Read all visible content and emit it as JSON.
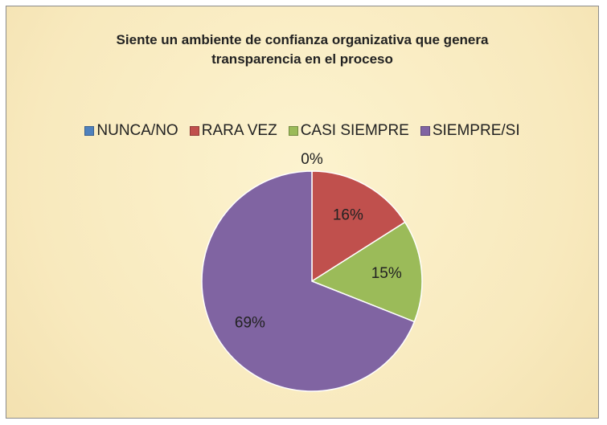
{
  "chart_data": {
    "type": "pie",
    "title": "Siente un ambiente de confianza organizativa que genera transparencia en el proceso",
    "categories": [
      "NUNCA/NO",
      "RARA VEZ",
      "CASI SIEMPRE",
      "SIEMPRE/SI"
    ],
    "values": [
      0,
      16,
      15,
      69
    ],
    "value_labels": [
      "0%",
      "16%",
      "15%",
      "69%"
    ],
    "colors": [
      "#4f81bd",
      "#c0504d",
      "#9bbb59",
      "#8064a2"
    ],
    "legend": "top"
  }
}
